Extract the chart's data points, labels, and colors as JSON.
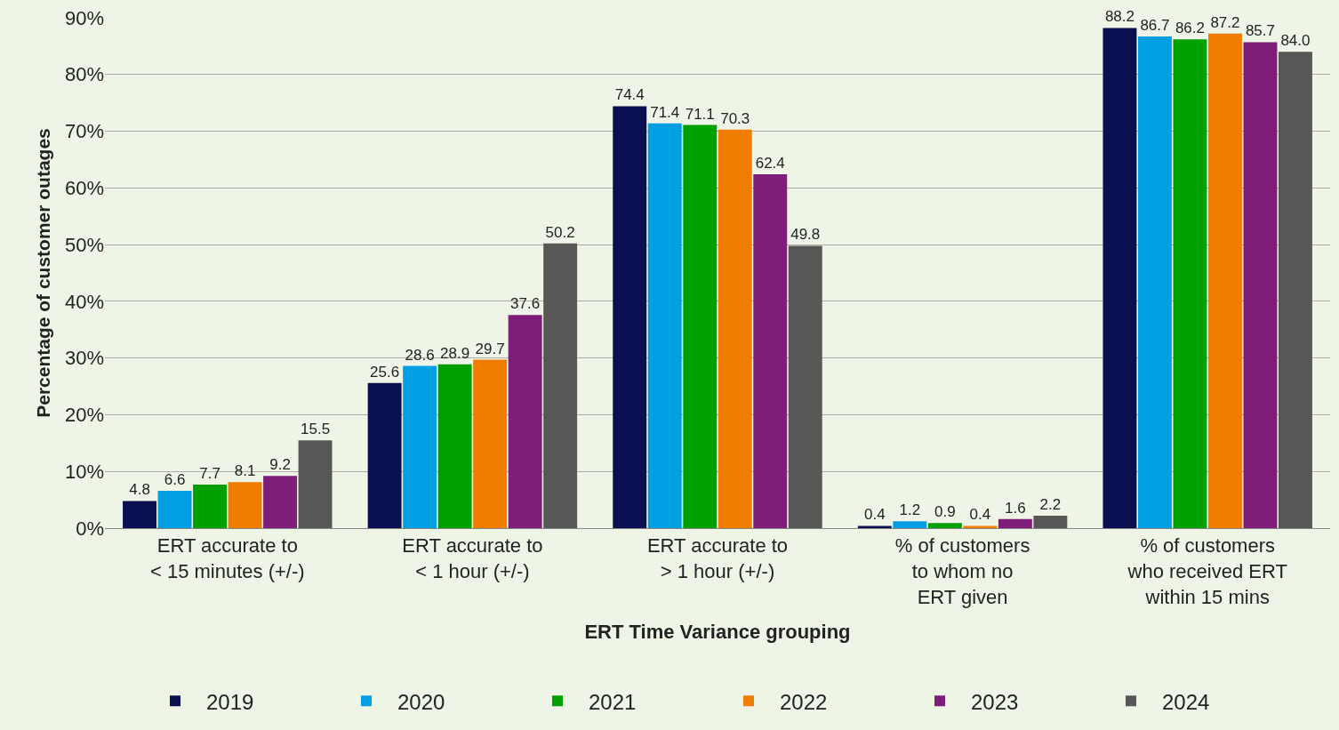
{
  "chart_data": {
    "type": "bar",
    "xlabel": "ERT Time Variance grouping",
    "ylabel": "Percentage of customer outages",
    "categories": [
      "ERT accurate to\n< 15 minutes (+/-)",
      "ERT accurate to\n< 1 hour (+/-)",
      "ERT accurate to\n> 1 hour (+/-)",
      "% of customers\nto whom no\nERT given",
      "% of customers\nwho received ERT\nwithin 15 mins"
    ],
    "series": [
      {
        "name": "2019",
        "color": "#0a0f4f",
        "values": [
          4.8,
          25.6,
          74.4,
          0.4,
          88.2
        ],
        "value_labels": [
          "4.8",
          "25.6",
          "74.4",
          "0.4",
          "88.2"
        ]
      },
      {
        "name": "2020",
        "color": "#009fe3",
        "values": [
          6.6,
          28.6,
          71.4,
          1.2,
          86.7
        ],
        "value_labels": [
          "6.6",
          "28.6",
          "71.4",
          "1.2",
          "86.7"
        ]
      },
      {
        "name": "2021",
        "color": "#00a000",
        "values": [
          7.7,
          28.9,
          71.1,
          0.9,
          86.2
        ],
        "value_labels": [
          "7.7",
          "28.9",
          "71.1",
          "0.9",
          "86.2"
        ]
      },
      {
        "name": "2022",
        "color": "#f07d00",
        "values": [
          8.1,
          29.7,
          70.3,
          0.4,
          87.2
        ],
        "value_labels": [
          "8.1",
          "29.7",
          "70.3",
          "0.4",
          "87.2"
        ]
      },
      {
        "name": "2023",
        "color": "#7f1d7a",
        "values": [
          9.2,
          37.6,
          62.4,
          1.6,
          85.7
        ],
        "value_labels": [
          "9.2",
          "37.6",
          "62.4",
          "1.6",
          "85.7"
        ]
      },
      {
        "name": "2024",
        "color": "#575756",
        "values": [
          15.5,
          50.2,
          49.8,
          2.2,
          84.0
        ],
        "value_labels": [
          "15.5",
          "50.2",
          "49.8",
          "2.2",
          "84.0"
        ]
      }
    ],
    "ylim": [
      0,
      90
    ],
    "yticks": [
      {
        "value": 0,
        "label": "0%"
      },
      {
        "value": 10,
        "label": "10%"
      },
      {
        "value": 20,
        "label": "20%"
      },
      {
        "value": 30,
        "label": "30%"
      },
      {
        "value": 40,
        "label": "40%"
      },
      {
        "value": 50,
        "label": "50%"
      },
      {
        "value": 60,
        "label": "60%"
      },
      {
        "value": 70,
        "label": "70%"
      },
      {
        "value": 80,
        "label": "80%"
      },
      {
        "value": 90,
        "label": "90%"
      }
    ],
    "grid": "y",
    "legend": "bottom"
  }
}
